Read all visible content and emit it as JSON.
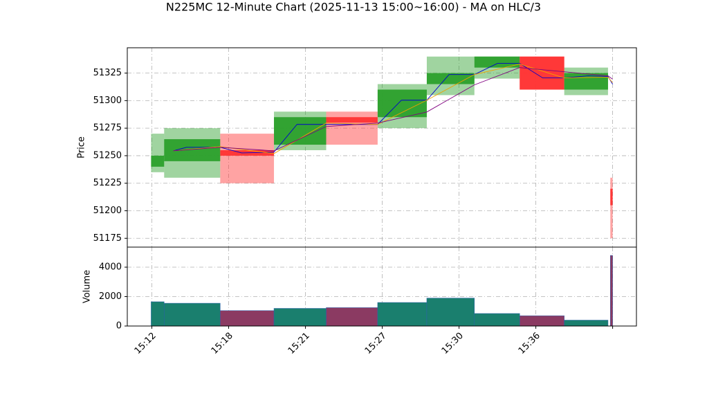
{
  "chart_data": {
    "type": "candlestick",
    "title": "N225MC 12-Minute Chart (2025-11-13 15:00~16:00) - MA on HLC/3",
    "ylabel": "Price",
    "y2label": "Volume",
    "xlim": [
      -0.32,
      6.31
    ],
    "xticks": [
      {
        "value": 0,
        "label": "15:12"
      },
      {
        "value": 1,
        "label": "15:18"
      },
      {
        "value": 2,
        "label": "15:21"
      },
      {
        "value": 3,
        "label": "15:27"
      },
      {
        "value": 4,
        "label": "15:30"
      },
      {
        "value": 5,
        "label": "15:36"
      },
      {
        "value": 6,
        "label": null
      }
    ],
    "x0": [
      -0.01,
      0.16,
      0.89,
      1.59,
      2.27,
      2.94,
      3.58,
      4.2,
      4.79,
      5.37,
      5.97
    ],
    "x1": [
      0.16,
      0.89,
      1.59,
      2.27,
      2.94,
      3.58,
      4.2,
      4.79,
      5.37,
      5.94,
      6.0
    ],
    "open": [
      51240,
      51245,
      51255,
      51260,
      51285,
      51285,
      51315,
      51330,
      51340,
      51310,
      51220
    ],
    "high": [
      51270,
      51275,
      51270,
      51290,
      51290,
      51315,
      51340,
      51340,
      51340,
      51330,
      51230
    ],
    "low": [
      51235,
      51230,
      51225,
      51255,
      51260,
      51275,
      51305,
      51320,
      51310,
      51305,
      51175
    ],
    "close": [
      51250,
      51265,
      51250,
      51285,
      51280,
      51310,
      51325,
      51340,
      51310,
      51325,
      51205
    ],
    "volume": [
      1650,
      1550,
      1050,
      1200,
      1250,
      1600,
      1900,
      850,
      700,
      400,
      4800
    ],
    "up_color": "#2ca02c",
    "down_color": "#ff3333",
    "up_volume_color": "#1a7f6e",
    "down_volume_color": "#8b3a62",
    "ylim": [
      51167,
      51348
    ],
    "yticks": [
      51175,
      51200,
      51225,
      51250,
      51275,
      51300,
      51325
    ],
    "y2lim": [
      0,
      5365
    ],
    "y2ticks": [
      0,
      2000,
      4000
    ],
    "grid": true,
    "ma": [
      {
        "color": "#0000cc",
        "x": [
          0.28,
          0.45,
          0.89,
          1.17,
          1.59,
          1.89,
          2.27,
          2.94,
          3.25,
          3.58,
          3.87,
          4.2,
          4.5,
          4.79,
          5.09,
          5.37,
          5.68,
          5.94,
          6.0
        ],
        "values": [
          51254.4,
          51257.6,
          51257.6,
          51252.5,
          51253.2,
          51278.4,
          51278.4,
          51278.4,
          51300.4,
          51300.4,
          51323.7,
          51323.7,
          51333.8,
          51333.8,
          51320.6,
          51320.6,
          51322.5,
          51321.9,
          51314.9
        ]
      },
      {
        "color": "#f0a000",
        "x": [
          0.28,
          0.89,
          1.59,
          2.27,
          2.94,
          3.58,
          4.2,
          4.79,
          5.37,
          5.94,
          6.0
        ],
        "values": [
          51254.4,
          51258.2,
          51251.9,
          51279.6,
          51278.4,
          51300.4,
          51323.7,
          51333.2,
          51320.6,
          51321.3,
          51316.2
        ]
      },
      {
        "color": "#800080",
        "x": [
          0.28,
          0.89,
          1.59,
          2.27,
          2.94,
          3.58,
          4.2,
          4.79,
          5.37,
          5.94,
          6.0
        ],
        "values": [
          51254.4,
          51257.6,
          51254.4,
          51276.5,
          51279.6,
          51289.7,
          51314.3,
          51330.0,
          51326.2,
          51322.5,
          51319.4
        ]
      }
    ]
  }
}
